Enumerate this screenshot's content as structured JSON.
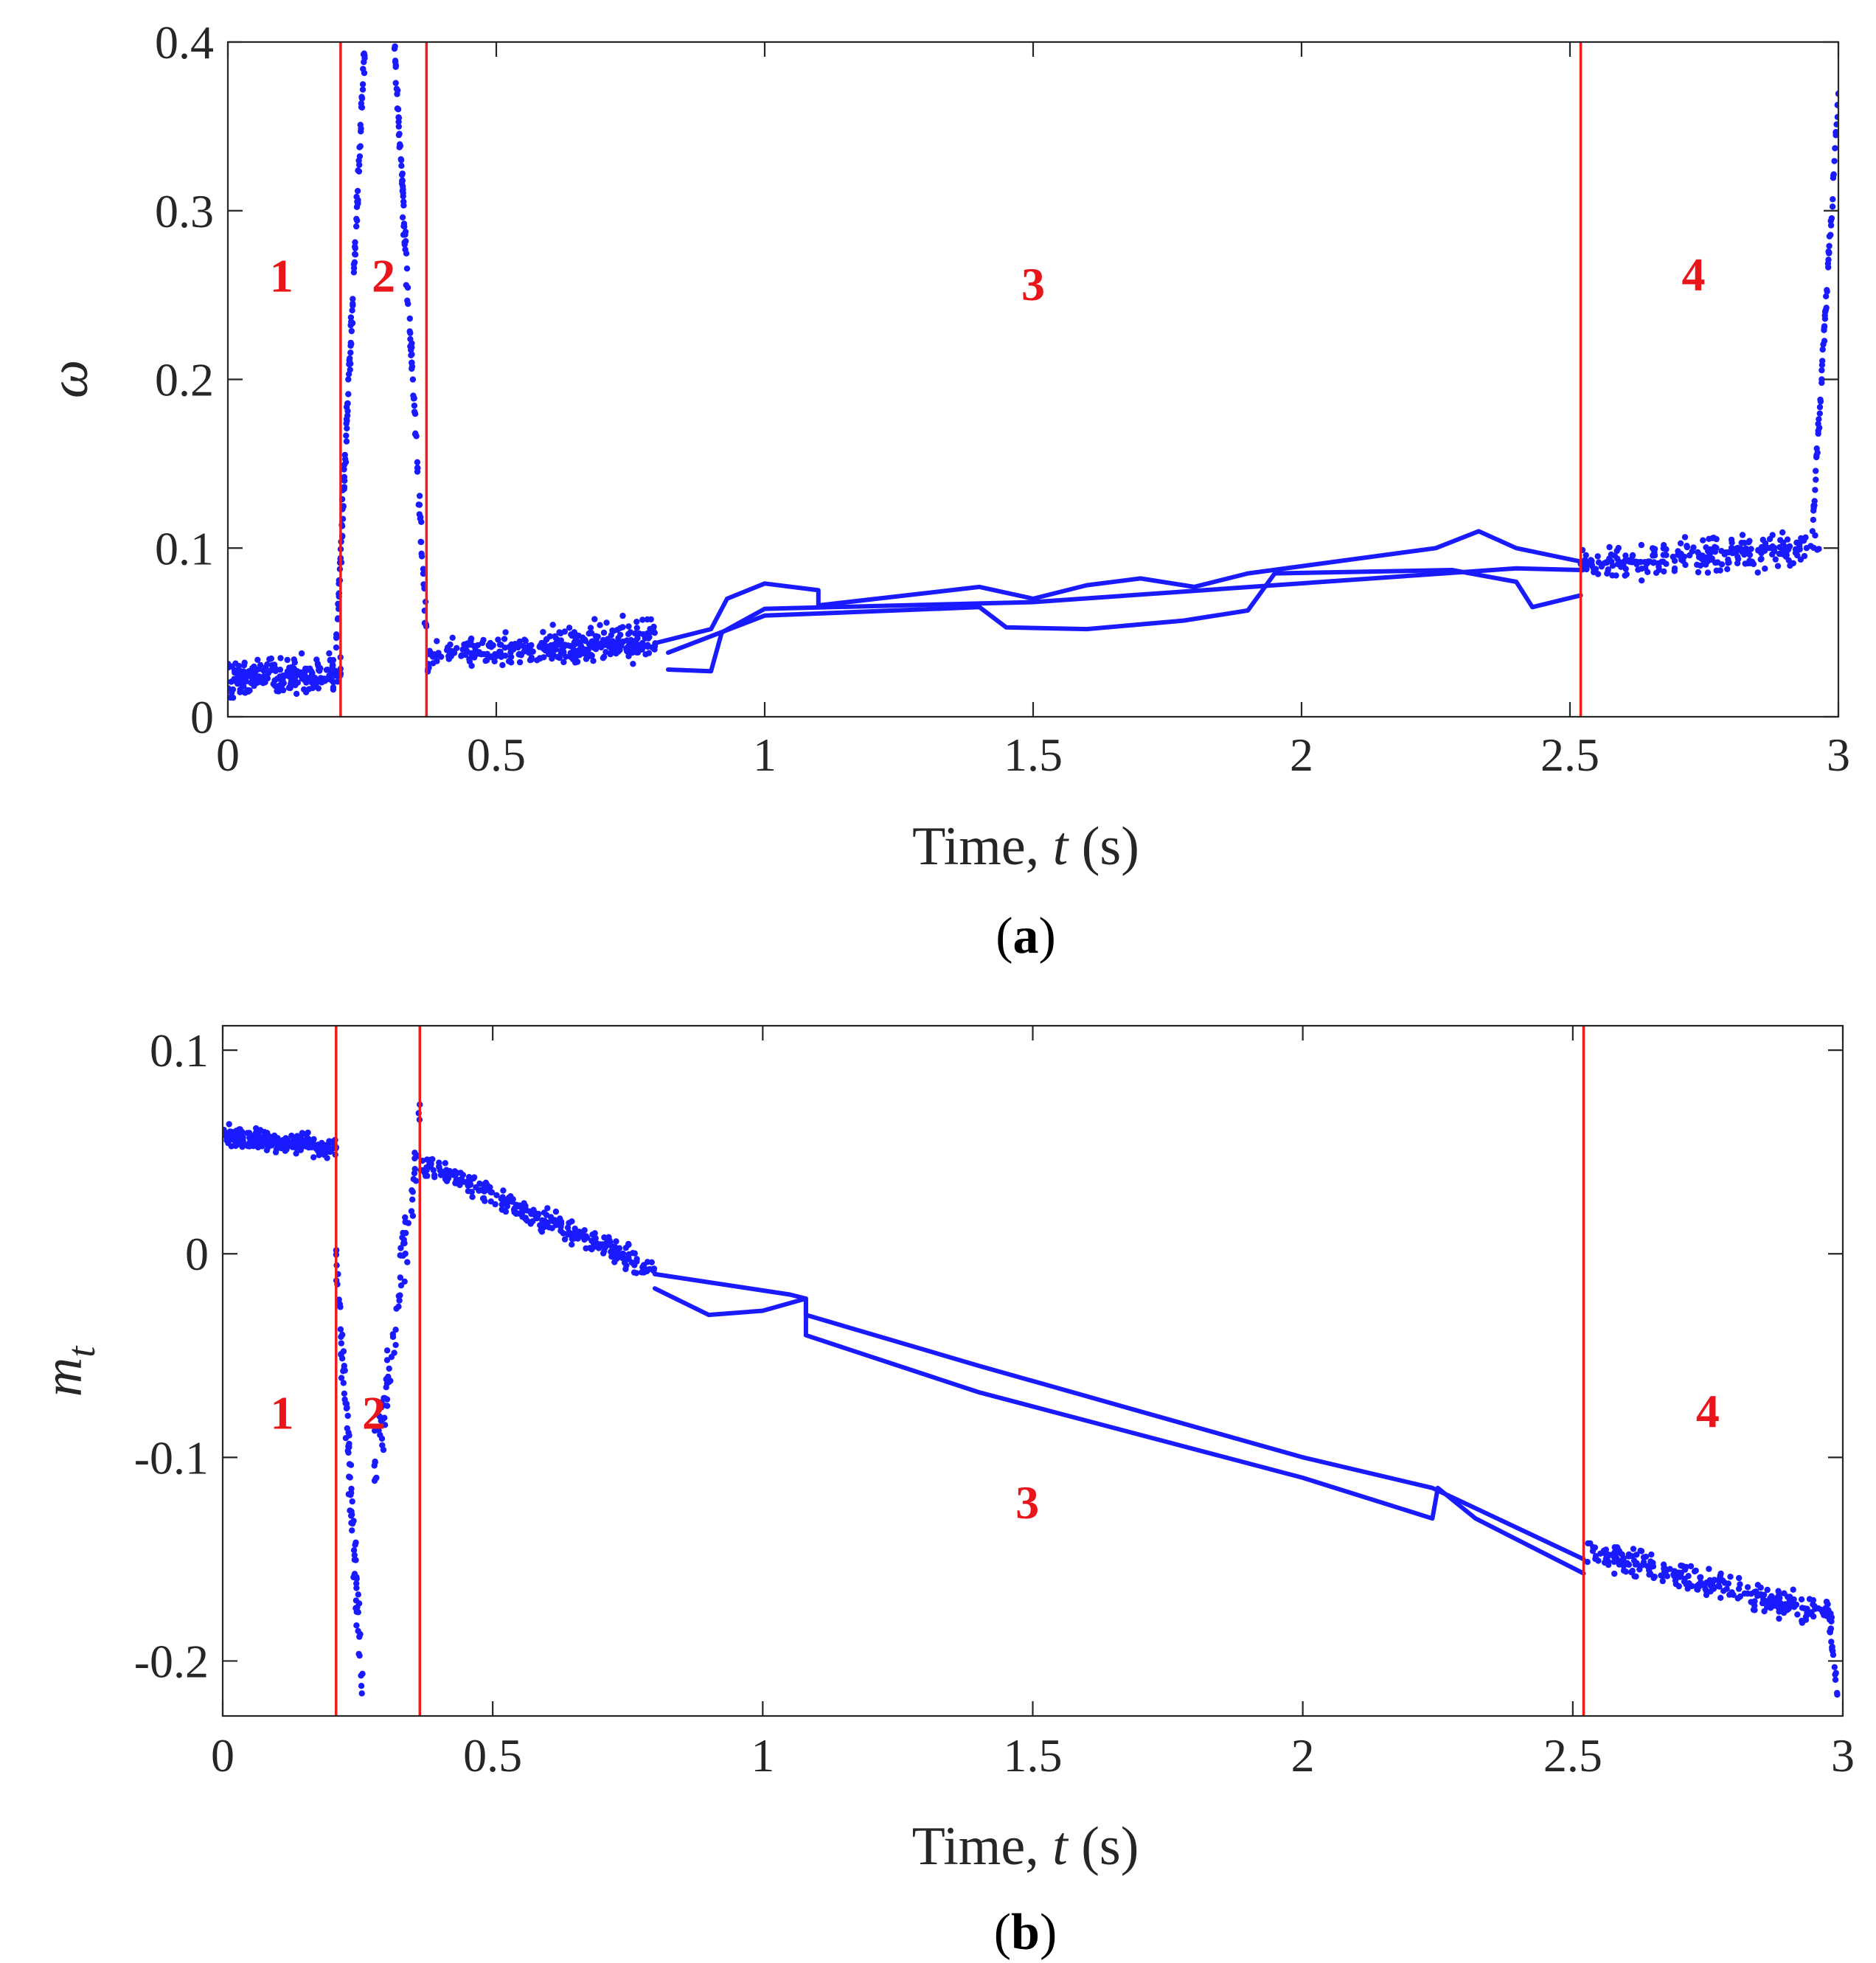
{
  "chart_data": [
    {
      "type": "scatter",
      "caption_label": "a",
      "xlabel_prefix": "Time, ",
      "xlabel_var": "t",
      "xlabel_suffix": " (s)",
      "ylabel": "ω",
      "ylabel_sub": "",
      "xlim": [
        0,
        3
      ],
      "ylim": [
        0,
        0.4
      ],
      "xticks": [
        0,
        0.5,
        1,
        1.5,
        2,
        2.5,
        3
      ],
      "xtick_labels": [
        "0",
        "0.5",
        "1",
        "1.5",
        "2",
        "2.5",
        "3"
      ],
      "yticks": [
        0,
        0.1,
        0.2,
        0.3,
        0.4
      ],
      "ytick_labels": [
        "0",
        "0.1",
        "0.2",
        "0.3",
        "0.4"
      ],
      "colors": {
        "data": "#1a1aff",
        "boundary": "#ee1c1c",
        "region_text": "#e8151b"
      },
      "boundaries": [
        0.21,
        0.37,
        2.52
      ],
      "regions": [
        {
          "label": "1",
          "x": 0.1,
          "y": 0.252
        },
        {
          "label": "2",
          "x": 0.29,
          "y": 0.252
        },
        {
          "label": "3",
          "x": 1.5,
          "y": 0.247
        },
        {
          "label": "4",
          "x": 2.73,
          "y": 0.253
        }
      ],
      "trend_lines": [
        [
          [
            0.8,
            0.044
          ],
          [
            0.9,
            0.052
          ],
          [
            0.93,
            0.07
          ],
          [
            1.0,
            0.079
          ],
          [
            1.1,
            0.075
          ],
          [
            1.1,
            0.066
          ],
          [
            1.4,
            0.077
          ],
          [
            1.5,
            0.07
          ],
          [
            1.6,
            0.078
          ],
          [
            1.7,
            0.082
          ],
          [
            1.8,
            0.077
          ],
          [
            1.9,
            0.085
          ],
          [
            2.25,
            0.1
          ],
          [
            2.33,
            0.11
          ],
          [
            2.4,
            0.1
          ],
          [
            2.52,
            0.092
          ]
        ],
        [
          [
            0.82,
            0.038
          ],
          [
            1.0,
            0.06
          ],
          [
            1.4,
            0.065
          ],
          [
            1.45,
            0.053
          ],
          [
            1.6,
            0.052
          ],
          [
            1.78,
            0.057
          ],
          [
            1.9,
            0.063
          ],
          [
            1.95,
            0.085
          ],
          [
            2.28,
            0.087
          ],
          [
            2.4,
            0.08
          ],
          [
            2.43,
            0.065
          ],
          [
            2.52,
            0.072
          ]
        ],
        [
          [
            0.82,
            0.028
          ],
          [
            0.9,
            0.027
          ],
          [
            0.92,
            0.05
          ],
          [
            1.0,
            0.064
          ],
          [
            1.5,
            0.068
          ],
          [
            2.4,
            0.088
          ],
          [
            2.52,
            0.087
          ]
        ]
      ],
      "scatter_segments": [
        {
          "x0": 0.0,
          "x1": 0.21,
          "y0": 0.022,
          "y1": 0.026,
          "spread": 0.016,
          "n": 220
        },
        {
          "x0": 0.2,
          "x1": 0.255,
          "y0": 0.03,
          "y1": 0.4,
          "spread": 0.018,
          "n": 120
        },
        {
          "x0": 0.31,
          "x1": 0.375,
          "y0": 0.4,
          "y1": 0.02,
          "spread": 0.018,
          "n": 110
        },
        {
          "x0": 0.37,
          "x1": 0.8,
          "y0": 0.038,
          "y1": 0.044,
          "spread": 0.012,
          "n": 260
        },
        {
          "x0": 0.6,
          "x1": 0.8,
          "y0": 0.04,
          "y1": 0.05,
          "spread": 0.02,
          "n": 80
        },
        {
          "x0": 2.52,
          "x1": 2.97,
          "y0": 0.09,
          "y1": 0.1,
          "spread": 0.014,
          "n": 260
        },
        {
          "x0": 2.95,
          "x1": 3.0,
          "y0": 0.1,
          "y1": 0.37,
          "spread": 0.012,
          "n": 70
        }
      ]
    },
    {
      "type": "scatter",
      "caption_label": "b",
      "xlabel_prefix": "Time, ",
      "xlabel_var": "t",
      "xlabel_suffix": " (s)",
      "ylabel": "m",
      "ylabel_sub": "t",
      "xlim": [
        0,
        3
      ],
      "ylim": [
        -0.227,
        0.112
      ],
      "xticks": [
        0,
        0.5,
        1,
        1.5,
        2,
        2.5,
        3
      ],
      "xtick_labels": [
        "0",
        "0.5",
        "1",
        "1.5",
        "2",
        "2.5",
        "3"
      ],
      "yticks": [
        -0.2,
        -0.1,
        0,
        0.1
      ],
      "ytick_labels": [
        "-0.2",
        "-0.1",
        "0",
        "0.1"
      ],
      "colors": {
        "data": "#1a1aff",
        "boundary": "#ee1c1c",
        "region_text": "#e8151b"
      },
      "boundaries": [
        0.21,
        0.365,
        2.52
      ],
      "regions": [
        {
          "label": "1",
          "x": 0.11,
          "y": -0.086
        },
        {
          "label": "2",
          "x": 0.28,
          "y": -0.086
        },
        {
          "label": "3",
          "x": 1.49,
          "y": -0.13
        },
        {
          "label": "4",
          "x": 2.75,
          "y": -0.085
        }
      ],
      "trend_lines": [
        [
          [
            0.8,
            -0.01
          ],
          [
            1.05,
            -0.02
          ],
          [
            1.08,
            -0.022
          ],
          [
            1.08,
            -0.03
          ],
          [
            1.4,
            -0.055
          ],
          [
            2.0,
            -0.1
          ],
          [
            2.24,
            -0.115
          ],
          [
            2.52,
            -0.15
          ]
        ],
        [
          [
            0.8,
            -0.017
          ],
          [
            0.9,
            -0.03
          ],
          [
            1.0,
            -0.028
          ],
          [
            1.08,
            -0.022
          ],
          [
            1.08,
            -0.04
          ],
          [
            1.4,
            -0.068
          ],
          [
            2.0,
            -0.11
          ],
          [
            2.24,
            -0.13
          ],
          [
            2.25,
            -0.115
          ],
          [
            2.32,
            -0.13
          ],
          [
            2.52,
            -0.157
          ]
        ]
      ],
      "scatter_segments": [
        {
          "x0": 0.0,
          "x1": 0.21,
          "y0": 0.058,
          "y1": 0.052,
          "spread": 0.007,
          "n": 220
        },
        {
          "x0": 0.21,
          "x1": 0.26,
          "y0": 0.0,
          "y1": -0.22,
          "spread": 0.03,
          "n": 90
        },
        {
          "x0": 0.28,
          "x1": 0.365,
          "y0": -0.11,
          "y1": 0.06,
          "spread": 0.025,
          "n": 80
        },
        {
          "x0": 0.365,
          "x1": 0.8,
          "y0": 0.045,
          "y1": -0.008,
          "spread": 0.008,
          "n": 280
        },
        {
          "x0": 2.52,
          "x1": 2.98,
          "y0": -0.145,
          "y1": -0.178,
          "spread": 0.01,
          "n": 280
        },
        {
          "x0": 2.97,
          "x1": 2.99,
          "y0": -0.17,
          "y1": -0.215,
          "spread": 0.005,
          "n": 20
        }
      ]
    }
  ]
}
